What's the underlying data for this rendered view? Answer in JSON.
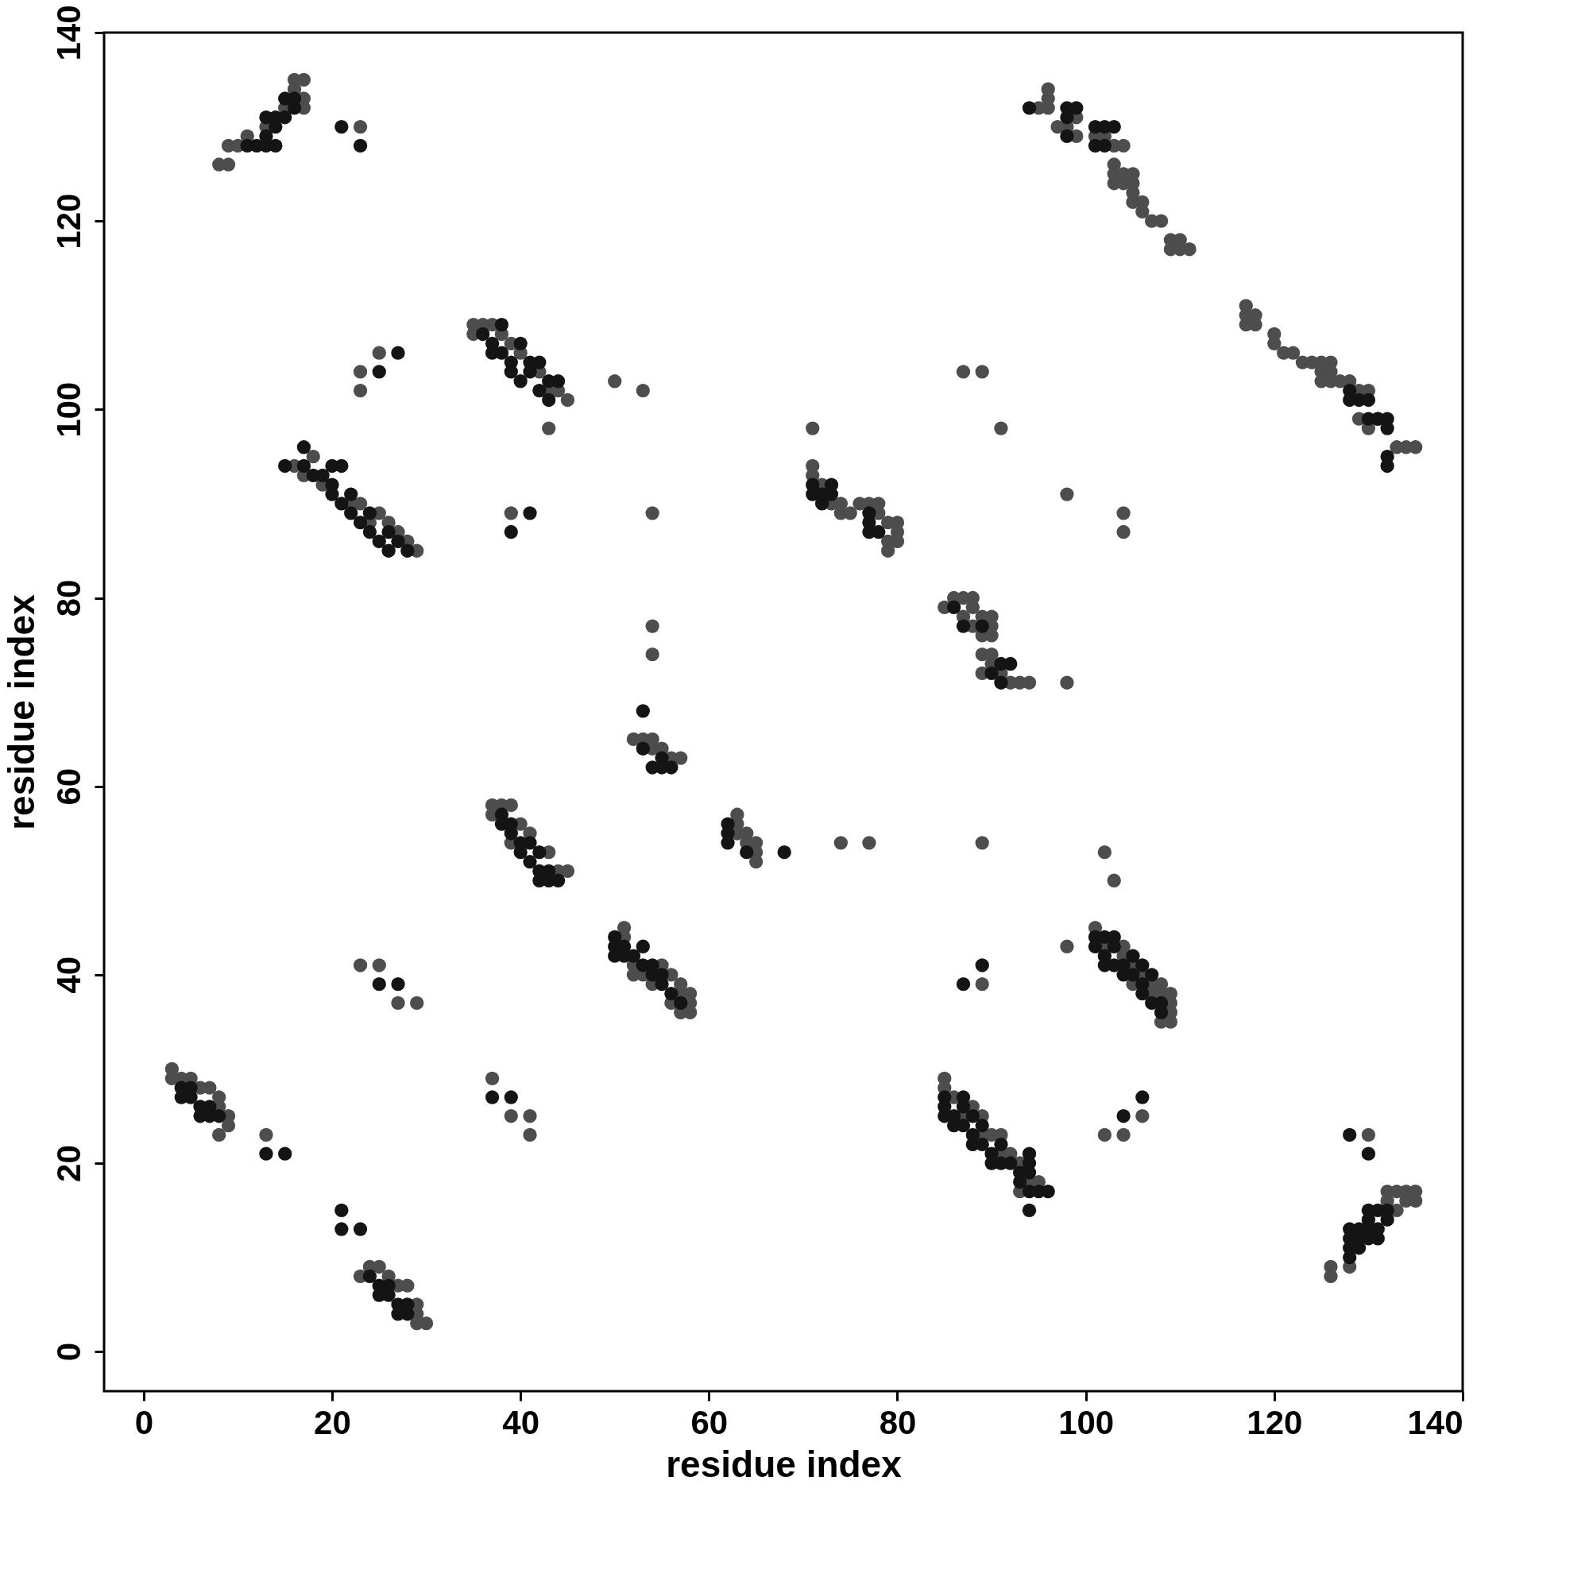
{
  "chart_data": {
    "type": "scatter",
    "xlabel": "residue index",
    "ylabel": "residue index",
    "xlim": [
      -4.2,
      140
    ],
    "ylim": [
      -4.2,
      140
    ],
    "xticks": [
      0,
      20,
      40,
      60,
      80,
      100,
      120,
      140
    ],
    "yticks": [
      0,
      20,
      40,
      60,
      80,
      100,
      120,
      140
    ],
    "grid": false,
    "marker": "circle",
    "series": [
      {
        "color": "#4d4d4d",
        "x": [
          3,
          3,
          4,
          5,
          6,
          7,
          8,
          8,
          9,
          9,
          8,
          13,
          23,
          24,
          25,
          26,
          27,
          28,
          29,
          29,
          30,
          29,
          23,
          25,
          27,
          29,
          37,
          39,
          41,
          41,
          16,
          17,
          18,
          19,
          22,
          23,
          24,
          25,
          26,
          27,
          28,
          29,
          8,
          9,
          9,
          10,
          11,
          13,
          15,
          16,
          16,
          17,
          17,
          17,
          23,
          23,
          23,
          25,
          35,
          35,
          36,
          37,
          38,
          39,
          40,
          42,
          43,
          44,
          45,
          43,
          39,
          50,
          53,
          54,
          54,
          54,
          52,
          53,
          54,
          54,
          55,
          56,
          57,
          37,
          37,
          38,
          39,
          39,
          40,
          41,
          43,
          44,
          45,
          63,
          63,
          64,
          64,
          65,
          65,
          65,
          63,
          74,
          77,
          89,
          51,
          51,
          52,
          52,
          53,
          54,
          55,
          56,
          57,
          57,
          58,
          58,
          57,
          58,
          56,
          71,
          71,
          71,
          72,
          73,
          74,
          74,
          75,
          76,
          77,
          78,
          78,
          79,
          79,
          80,
          80,
          79,
          80,
          85,
          86,
          87,
          88,
          88,
          87,
          88,
          89,
          90,
          90,
          89,
          90,
          89,
          90,
          90,
          91,
          92,
          93,
          94,
          89,
          98,
          87,
          89,
          91,
          98,
          104,
          104,
          95,
          96,
          96,
          96,
          97,
          98,
          99,
          99,
          101,
          102,
          103,
          104,
          103,
          103,
          104,
          103,
          104,
          105,
          105,
          105,
          105,
          106,
          106,
          107,
          108,
          109,
          109,
          110,
          110,
          111,
          117,
          117,
          117,
          118,
          118,
          120,
          120,
          121,
          122,
          123,
          124,
          125,
          125,
          126,
          126,
          125,
          126,
          127,
          128,
          129,
          130,
          129,
          130,
          133,
          134,
          135,
          101,
          102,
          104,
          104,
          105,
          106,
          107,
          107,
          108,
          108,
          109,
          109,
          109,
          109,
          108,
          105,
          98,
          102,
          103,
          89,
          85,
          85,
          86,
          87,
          88,
          89,
          89,
          90,
          91,
          91,
          92,
          93,
          93,
          94,
          95,
          102,
          104,
          106,
          126,
          126,
          128,
          132,
          132,
          133,
          134,
          135,
          135,
          134,
          133,
          130
        ],
        "values": [
          30,
          29,
          29,
          29,
          28,
          28,
          27,
          26,
          25,
          24,
          23,
          23,
          8,
          9,
          9,
          8,
          7,
          7,
          5,
          4,
          3,
          3,
          41,
          41,
          37,
          37,
          29,
          25,
          25,
          23,
          94,
          93,
          95,
          92,
          90,
          90,
          88,
          89,
          88,
          87,
          86,
          85,
          126,
          126,
          128,
          128,
          129,
          130,
          132,
          134,
          135,
          135,
          133,
          132,
          130,
          104,
          102,
          106,
          109,
          108,
          109,
          109,
          108,
          107,
          106,
          104,
          102,
          102,
          101,
          98,
          89,
          103,
          102,
          89,
          77,
          74,
          65,
          65,
          65,
          64,
          64,
          63,
          63,
          58,
          57,
          58,
          58,
          54,
          56,
          55,
          53,
          51,
          51,
          57,
          56,
          55,
          54,
          54,
          53,
          52,
          55,
          54,
          54,
          54,
          45,
          44,
          41,
          40,
          40,
          39,
          41,
          40,
          39,
          38,
          38,
          37,
          36,
          36,
          37,
          98,
          94,
          93,
          92,
          90,
          89,
          90,
          89,
          90,
          90,
          90,
          89,
          88,
          86,
          88,
          86,
          85,
          87,
          79,
          80,
          80,
          80,
          79,
          78,
          77,
          78,
          78,
          77,
          76,
          76,
          74,
          74,
          73,
          72,
          71,
          71,
          71,
          72,
          71,
          104,
          104,
          98,
          91,
          89,
          87,
          132,
          132,
          133,
          134,
          130,
          130,
          129,
          131,
          129,
          129,
          128,
          128,
          126,
          125,
          125,
          124,
          124,
          125,
          124,
          123,
          122,
          122,
          121,
          120,
          120,
          118,
          117,
          118,
          117,
          117,
          111,
          110,
          109,
          110,
          109,
          108,
          107,
          106,
          106,
          105,
          105,
          105,
          104,
          105,
          104,
          103,
          103,
          103,
          103,
          102,
          102,
          99,
          98,
          96,
          96,
          96,
          45,
          43,
          42,
          43,
          39,
          40,
          38,
          39,
          39,
          38,
          38,
          37,
          36,
          35,
          35,
          41,
          43,
          53,
          50,
          39,
          29,
          28,
          27,
          25,
          26,
          25,
          23,
          23,
          23,
          21,
          21,
          20,
          17,
          18,
          18,
          23,
          23,
          25,
          9,
          8,
          9,
          16,
          17,
          17,
          17,
          17,
          16,
          16,
          15,
          23
        ]
      },
      {
        "color": "#141414",
        "x": [
          4,
          4,
          5,
          5,
          6,
          6,
          7,
          7,
          8,
          13,
          15,
          21,
          21,
          23,
          24,
          25,
          25,
          26,
          26,
          27,
          27,
          28,
          28,
          25,
          27,
          37,
          39,
          15,
          17,
          17,
          18,
          19,
          20,
          21,
          20,
          20,
          21,
          22,
          22,
          23,
          24,
          24,
          25,
          26,
          26,
          27,
          28,
          11,
          12,
          13,
          13,
          14,
          13,
          14,
          14,
          15,
          16,
          15,
          16,
          21,
          23,
          25,
          27,
          36,
          37,
          37,
          38,
          38,
          39,
          39,
          40,
          41,
          40,
          41,
          42,
          42,
          43,
          44,
          43,
          39,
          41,
          53,
          53,
          54,
          55,
          56,
          55,
          38,
          38,
          39,
          39,
          40,
          40,
          41,
          42,
          42,
          42,
          43,
          43,
          44,
          41,
          62,
          62,
          62,
          64,
          68,
          50,
          50,
          51,
          52,
          53,
          53,
          54,
          55,
          55,
          56,
          57,
          50,
          51,
          54,
          71,
          71,
          72,
          73,
          73,
          72,
          77,
          77,
          78,
          77,
          86,
          87,
          89,
          91,
          90,
          91,
          92,
          94,
          98,
          98,
          99,
          98,
          101,
          101,
          102,
          102,
          103,
          128,
          128,
          129,
          130,
          130,
          131,
          132,
          132,
          132,
          132,
          131,
          101,
          101,
          102,
          102,
          103,
          103,
          103,
          104,
          104,
          105,
          105,
          106,
          106,
          107,
          107,
          108,
          108,
          102,
          106,
          87,
          89,
          85,
          85,
          86,
          86,
          87,
          87,
          87,
          88,
          88,
          89,
          89,
          90,
          90,
          91,
          91,
          92,
          93,
          94,
          94,
          94,
          93,
          94,
          95,
          96,
          94,
          88,
          85,
          104,
          106,
          128,
          128,
          128,
          128,
          129,
          129,
          130,
          130,
          130,
          131,
          131,
          131,
          132,
          132,
          129,
          130,
          128,
          130
        ],
        "values": [
          28,
          27,
          27,
          28,
          26,
          25,
          26,
          25,
          25,
          21,
          21,
          15,
          13,
          13,
          8,
          7,
          6,
          7,
          6,
          5,
          4,
          4,
          5,
          39,
          39,
          27,
          27,
          94,
          96,
          94,
          93,
          93,
          94,
          94,
          92,
          91,
          90,
          91,
          89,
          88,
          89,
          87,
          86,
          87,
          85,
          86,
          85,
          128,
          128,
          129,
          128,
          128,
          131,
          130,
          131,
          133,
          132,
          131,
          133,
          130,
          128,
          104,
          106,
          108,
          107,
          106,
          109,
          106,
          105,
          104,
          107,
          105,
          103,
          104,
          105,
          102,
          101,
          103,
          103,
          87,
          89,
          68,
          64,
          62,
          62,
          62,
          63,
          57,
          56,
          56,
          55,
          54,
          53,
          52,
          53,
          51,
          50,
          51,
          50,
          50,
          54,
          56,
          55,
          54,
          53,
          53,
          44,
          43,
          42,
          42,
          43,
          41,
          41,
          40,
          39,
          38,
          37,
          42,
          43,
          40,
          92,
          91,
          91,
          92,
          91,
          90,
          89,
          87,
          87,
          88,
          79,
          77,
          77,
          73,
          72,
          71,
          73,
          132,
          132,
          131,
          132,
          129,
          130,
          128,
          130,
          128,
          130,
          102,
          101,
          101,
          101,
          99,
          99,
          99,
          98,
          95,
          94,
          99,
          44,
          43,
          44,
          42,
          43,
          44,
          41,
          41,
          40,
          42,
          40,
          39,
          38,
          37,
          40,
          37,
          36,
          41,
          41,
          39,
          41,
          27,
          26,
          25,
          24,
          26,
          27,
          24,
          23,
          22,
          24,
          22,
          21,
          20,
          22,
          20,
          20,
          19,
          21,
          20,
          19,
          18,
          17,
          17,
          17,
          15,
          25,
          25,
          25,
          27,
          13,
          12,
          11,
          10,
          13,
          12,
          15,
          14,
          12,
          13,
          15,
          12,
          15,
          14,
          11,
          13,
          23,
          21
        ]
      }
    ]
  }
}
